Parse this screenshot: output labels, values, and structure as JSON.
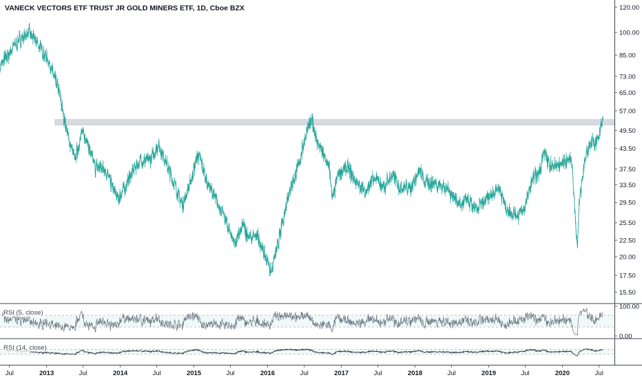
{
  "colors": {
    "price_series": "#26a69a",
    "rsi5": "#6e7a85",
    "rsi14": "#131722",
    "resistance_band": "#d1d4dc",
    "axis_text": "#131722"
  },
  "chart_data": [
    {
      "type": "line",
      "title": "VANECK VECTORS ETF TRUST JR GOLD MINERS ETF, 1D, Cboe BZX",
      "y_scale": "log",
      "ylim": [
        14.5,
        125
      ],
      "xlim": [
        "2012-05-15",
        "2020-09-15"
      ],
      "x": [
        "2012-05-15",
        "2012-08-01",
        "2012-10-01",
        "2012-11-15",
        "2013-01-10",
        "2013-03-01",
        "2013-04-15",
        "2013-05-20",
        "2013-07-01",
        "2013-08-28",
        "2013-10-15",
        "2013-12-20",
        "2014-03-15",
        "2014-04-15",
        "2014-06-01",
        "2014-07-10",
        "2014-09-01",
        "2014-11-05",
        "2014-12-15",
        "2015-01-22",
        "2015-03-10",
        "2015-05-15",
        "2015-07-25",
        "2015-09-01",
        "2015-09-30",
        "2015-11-15",
        "2016-01-19",
        "2016-03-01",
        "2016-04-15",
        "2016-06-01",
        "2016-07-15",
        "2016-08-10",
        "2016-09-01",
        "2016-11-01",
        "2016-11-20",
        "2016-12-15",
        "2017-02-01",
        "2017-03-15",
        "2017-05-01",
        "2017-06-15",
        "2017-08-01",
        "2017-09-10",
        "2017-10-15",
        "2017-12-12",
        "2018-01-25",
        "2018-02-20",
        "2018-04-01",
        "2018-06-01",
        "2018-08-17",
        "2018-09-15",
        "2018-11-01",
        "2018-12-20",
        "2019-02-20",
        "2019-04-01",
        "2019-05-28",
        "2019-06-25",
        "2019-08-07",
        "2019-09-04",
        "2019-10-01",
        "2019-11-10",
        "2019-12-31",
        "2020-02-15",
        "2020-03-16",
        "2020-03-25",
        "2020-04-15",
        "2020-05-15",
        "2020-06-15",
        "2020-07-01",
        "2020-07-20"
      ],
      "y": [
        78,
        92,
        100,
        93,
        82,
        66,
        48,
        40,
        50,
        38,
        38,
        30,
        38,
        40,
        40,
        45,
        37,
        29,
        34,
        42,
        34,
        28,
        22,
        25,
        23,
        23,
        18,
        23,
        32,
        38,
        50,
        53,
        46,
        38,
        30,
        36,
        38,
        34,
        32,
        35,
        33,
        36,
        33,
        33,
        37,
        34,
        34,
        33,
        29,
        30,
        28,
        30,
        33,
        28,
        27,
        28,
        35,
        36,
        42,
        38,
        39,
        41,
        21,
        30,
        38,
        45,
        46,
        48,
        53
      ],
      "resistance_band": [
        51.5,
        53.5
      ],
      "yticks": [
        "120.00",
        "100.00",
        "85.00",
        "73.00",
        "65.00",
        "57.00",
        "49.50",
        "43.50",
        "37.50",
        "33.50",
        "29.50",
        "25.50",
        "22.50",
        "20.00",
        "17.50",
        "15.50"
      ],
      "xticks": [
        "Jul",
        "2013",
        "Jul",
        "2014",
        "Jul",
        "2015",
        "Jul",
        "2016",
        "Jul",
        "2017",
        "Jul",
        "2018",
        "Jul",
        "2019",
        "Jul",
        "2020",
        "Jul"
      ]
    },
    {
      "type": "line",
      "title": "RSI (5, close)",
      "ylim": [
        0,
        100
      ],
      "bands": [
        30,
        70
      ],
      "yticks": [
        "100.00",
        "0.00"
      ]
    },
    {
      "type": "line",
      "title": "RSI (14, close)"
    }
  ]
}
